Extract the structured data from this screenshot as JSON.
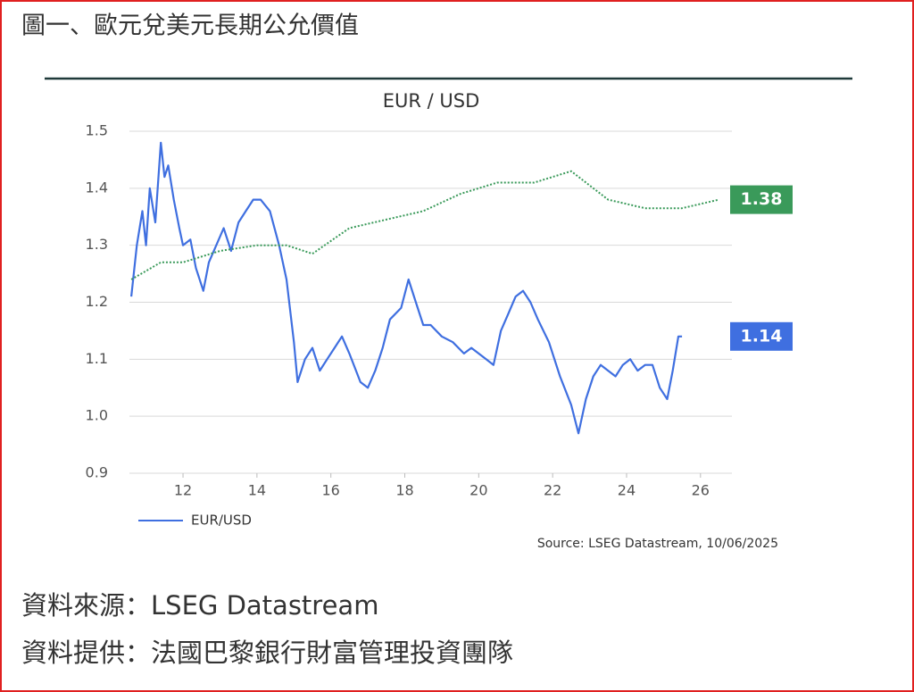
{
  "header": {
    "title": "圖一、歐元兌美元長期公允價值"
  },
  "chart_data": {
    "type": "line",
    "title": "EUR / USD",
    "xlim": [
      10.55,
      26.85
    ],
    "xticks": [
      12,
      14,
      16,
      18,
      20,
      22,
      24,
      26
    ],
    "ylim": [
      0.9,
      1.5
    ],
    "yticks": [
      0.9,
      {
        "value": 1,
        "label": "1.0"
      },
      1.1,
      1.2,
      1.3,
      1.4,
      1.5
    ],
    "grid": true,
    "legend": "bottom-left",
    "series": [
      {
        "name": "EUR/USD",
        "color": "#3f6fe0",
        "style": "solid",
        "end_label": "1.14",
        "x": [
          10.6,
          10.75,
          10.9,
          11.0,
          11.1,
          11.25,
          11.4,
          11.5,
          11.6,
          11.75,
          11.9,
          12.0,
          12.2,
          12.35,
          12.55,
          12.7,
          12.9,
          13.1,
          13.3,
          13.5,
          13.7,
          13.9,
          14.1,
          14.35,
          14.6,
          14.8,
          15.0,
          15.1,
          15.3,
          15.5,
          15.7,
          15.9,
          16.1,
          16.3,
          16.5,
          16.8,
          17.0,
          17.2,
          17.4,
          17.6,
          17.9,
          18.1,
          18.3,
          18.5,
          18.7,
          19.0,
          19.3,
          19.6,
          19.8,
          20.2,
          20.4,
          20.6,
          20.8,
          21.0,
          21.2,
          21.4,
          21.6,
          21.9,
          22.2,
          22.5,
          22.7,
          22.9,
          23.1,
          23.3,
          23.5,
          23.7,
          23.9,
          24.1,
          24.3,
          24.5,
          24.7,
          24.9,
          25.1,
          25.25,
          25.4,
          25.5
        ],
        "values": [
          1.21,
          1.3,
          1.36,
          1.3,
          1.4,
          1.34,
          1.48,
          1.42,
          1.44,
          1.38,
          1.33,
          1.3,
          1.31,
          1.26,
          1.22,
          1.27,
          1.3,
          1.33,
          1.29,
          1.34,
          1.36,
          1.38,
          1.38,
          1.36,
          1.3,
          1.24,
          1.13,
          1.06,
          1.1,
          1.12,
          1.08,
          1.1,
          1.12,
          1.14,
          1.11,
          1.06,
          1.05,
          1.08,
          1.12,
          1.17,
          1.19,
          1.24,
          1.2,
          1.16,
          1.16,
          1.14,
          1.13,
          1.11,
          1.12,
          1.1,
          1.09,
          1.15,
          1.18,
          1.21,
          1.22,
          1.2,
          1.17,
          1.13,
          1.07,
          1.02,
          0.97,
          1.03,
          1.07,
          1.09,
          1.08,
          1.07,
          1.09,
          1.1,
          1.08,
          1.09,
          1.09,
          1.05,
          1.03,
          1.08,
          1.14,
          1.14
        ]
      },
      {
        "color": "#3a9a5a",
        "style": "dotted",
        "end_label": "1.38",
        "x": [
          10.6,
          11.4,
          12.0,
          13.0,
          14.0,
          14.8,
          15.5,
          16.5,
          17.5,
          18.5,
          19.5,
          20.5,
          21.5,
          22.5,
          23.5,
          24.5,
          25.5,
          26.5
        ],
        "values": [
          1.24,
          1.27,
          1.27,
          1.29,
          1.3,
          1.3,
          1.285,
          1.33,
          1.345,
          1.36,
          1.39,
          1.41,
          1.41,
          1.43,
          1.38,
          1.365,
          1.365,
          1.38
        ]
      }
    ],
    "source": "Source: LSEG Datastream, 10/06/2025"
  },
  "footer": {
    "lines": [
      "資料來源：LSEG Datastream",
      "資料提供：法國巴黎銀行財富管理投資團隊"
    ]
  }
}
